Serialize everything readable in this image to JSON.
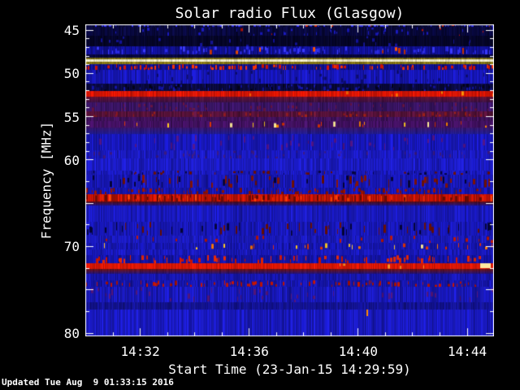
{
  "title": "Solar radio Flux (Glasgow)",
  "x_axis": {
    "label": "Start Time (23-Jan-15 14:29:59)",
    "start_time": "14:29:59",
    "major_ticks": [
      {
        "label": "14:32",
        "t": 2.017
      },
      {
        "label": "14:36",
        "t": 6.017
      },
      {
        "label": "14:40",
        "t": 10.017
      },
      {
        "label": "14:44",
        "t": 14.017
      }
    ],
    "minor_ticks": [
      0.017,
      1.017,
      2.017,
      3.017,
      4.017,
      5.017,
      6.017,
      7.017,
      8.017,
      9.017,
      10.017,
      11.017,
      12.017,
      13.017,
      14.017
    ]
  },
  "y_axis": {
    "label": "Frequency [MHz]",
    "unit": "MHz",
    "labeled_ticks": [
      45,
      50,
      55,
      60,
      70,
      80
    ],
    "major_ticks": [
      45,
      50,
      55,
      60,
      65,
      70,
      75,
      80
    ],
    "minor_ticks": [
      46,
      47,
      48,
      49,
      51,
      52,
      53,
      54,
      56,
      57,
      58,
      59,
      62.5,
      67.5,
      72.5,
      77.5
    ]
  },
  "footer": {
    "updated": "Updated Tue Aug  9 01:33:15 2016"
  },
  "colors": {
    "background": "#000000",
    "text": "#ffffff",
    "frame": "#ffffff",
    "base_blue": "#1a1ac4",
    "strong_red": "#e21500",
    "yellow_line": "#f7f2cf"
  },
  "chart_data": {
    "type": "heatmap",
    "subtype": "radio-spectrogram",
    "station": "Glasgow",
    "time_start": "14:29:59",
    "date": "23-Jan-15",
    "time_span_minutes": 15.0,
    "freq_range": [
      44.34,
      80.37
    ],
    "bands": [
      {
        "name": "top-edge-checker",
        "f0": 44.34,
        "f1": 44.65,
        "style": "noise",
        "color": "#0a0a3a",
        "noise": 0.9,
        "dashes": [
          {
            "colors": [
              "#2a2ae0",
              "#3333ff"
            ],
            "density": 0.55,
            "hFrac": 0.7
          },
          {
            "colors": [
              "#cc2200"
            ],
            "density": 0.1,
            "hFrac": 0.6,
            "rightBias": true
          }
        ]
      },
      {
        "name": "dark-navy-specks",
        "f0": 44.65,
        "f1": 45.7,
        "style": "noise",
        "color": "#08083c",
        "noise": 0.7,
        "dashes": [
          {
            "colors": [
              "#1a1abf"
            ],
            "density": 0.3,
            "hFrac": 0.3
          },
          {
            "colors": [
              "#bb1100"
            ],
            "density": 0.06,
            "hFrac": 0.25
          }
        ]
      },
      {
        "name": "very-dark-band",
        "f0": 45.7,
        "f1": 46.95,
        "style": "noise",
        "color": "#050528",
        "noise": 0.6,
        "dashes": [
          {
            "colors": [
              "#12129a"
            ],
            "density": 0.25,
            "hFrac": 0.3
          }
        ]
      },
      {
        "name": "blue-comb-47MHz",
        "f0": 46.95,
        "f1": 47.9,
        "style": "noise",
        "color": "#101095",
        "noise": 0.6,
        "dashes": [
          {
            "colors": [
              "#3a3aff",
              "#2a2ae8"
            ],
            "density": 0.5,
            "hFrac": 0.5
          },
          {
            "colors": [
              "#cc3300",
              "#ff5500"
            ],
            "density": 0.14,
            "hFrac": 0.55,
            "rightBias": true
          }
        ]
      },
      {
        "name": "dark-gap",
        "f0": 47.9,
        "f1": 48.26,
        "style": "noise",
        "color": "#07073a",
        "noise": 0.5
      },
      {
        "name": "olive-upper",
        "f0": 48.26,
        "f1": 48.46,
        "style": "noise",
        "color": "#7a6f10",
        "noise": 0.35
      },
      {
        "name": "bright-yellow-line-48.6MHz",
        "f0": 48.46,
        "f1": 48.74,
        "style": "noise",
        "color": "#f7f2cf",
        "noise": 0.12
      },
      {
        "name": "olive-lower",
        "f0": 48.74,
        "f1": 48.95,
        "style": "noise",
        "color": "#8a7a12",
        "noise": 0.35
      },
      {
        "name": "rfi-red-dashes-50MHz",
        "f0": 48.95,
        "f1": 49.62,
        "style": "noise",
        "color": "#101090",
        "noise": 0.55,
        "dashes": [
          {
            "colors": [
              "#dd1100",
              "#ff3300"
            ],
            "density": 0.45,
            "hFrac": 0.6
          }
        ]
      },
      {
        "name": "blue-50.5MHz",
        "f0": 49.62,
        "f1": 51.2,
        "style": "noise",
        "color": "#1717bc",
        "noise": 0.5,
        "dashes": [
          {
            "colors": [
              "#0d0d70"
            ],
            "density": 0.25,
            "hFrac": 0.25
          }
        ]
      },
      {
        "name": "dark-checker-51.5MHz",
        "f0": 51.2,
        "f1": 52.05,
        "style": "noise",
        "color": "#09093f",
        "noise": 0.7,
        "dashes": [
          {
            "colors": [
              "#1414a8"
            ],
            "density": 0.35,
            "hFrac": 0.4
          },
          {
            "colors": [
              "#030318"
            ],
            "density": 0.3,
            "hFrac": 0.4
          }
        ]
      },
      {
        "name": "solid-red-52.4MHz",
        "f0": 52.05,
        "f1": 52.7,
        "style": "noise",
        "color": "#e21500",
        "noise": 0.3,
        "dashes": [
          {
            "colors": [
              "#ff6a00",
              "#ff9900"
            ],
            "density": 0.1,
            "hFrac": 0.5,
            "rightBias": true
          }
        ]
      },
      {
        "name": "maroon-fade",
        "f0": 52.7,
        "f1": 53.35,
        "style": "grad",
        "color": "#6b1030",
        "color2": "#38104a",
        "noise": 0.4
      },
      {
        "name": "purple-mottle",
        "f0": 53.35,
        "f1": 54.38,
        "style": "noise",
        "color": "#3c1566",
        "noise": 0.5,
        "dashes": [
          {
            "colors": [
              "#6a1440"
            ],
            "density": 0.3,
            "hFrac": 0.3
          }
        ]
      },
      {
        "name": "maroon-stripe-54.7MHz",
        "f0": 54.38,
        "f1": 55.05,
        "style": "noise",
        "color": "#581238",
        "noise": 0.5,
        "dashes": [
          {
            "colors": [
              "#8c1a20",
              "#a02015"
            ],
            "density": 0.35,
            "hFrac": 0.45
          }
        ]
      },
      {
        "name": "dark-purple",
        "f0": 55.05,
        "f1": 55.58,
        "style": "noise",
        "color": "#42125c",
        "noise": 0.45
      },
      {
        "name": "orange-bursts-55.9MHz",
        "f0": 55.58,
        "f1": 56.28,
        "style": "noise",
        "color": "#451163",
        "noise": 0.45,
        "dashes": [
          {
            "colors": [
              "#ff8800",
              "#ffcc22",
              "#ffee99",
              "#dd3300"
            ],
            "density": 0.32,
            "hFrac": 0.55,
            "rightBias": true
          }
        ]
      },
      {
        "name": "purple-blue-fade",
        "f0": 56.28,
        "f1": 57.1,
        "style": "grad",
        "color": "#3a1670",
        "color2": "#1c1c9e",
        "noise": 0.4
      },
      {
        "name": "blue-58MHz",
        "f0": 57.1,
        "f1": 58.95,
        "style": "noise",
        "color": "#1818c0",
        "noise": 0.45,
        "dashes": [
          {
            "colors": [
              "#55158a"
            ],
            "density": 0.2,
            "hFrac": 0.3
          }
        ]
      },
      {
        "name": "purple-striation-59MHz",
        "f0": 58.95,
        "f1": 59.85,
        "style": "noise",
        "color": "#1b1bc6",
        "noise": 0.4,
        "dashes": [
          {
            "colors": [
              "#3d1a85"
            ],
            "density": 0.3,
            "hFrac": 0.35
          }
        ]
      },
      {
        "name": "blue-60MHz",
        "f0": 59.85,
        "f1": 61.25,
        "style": "noise",
        "color": "#1c1cca",
        "noise": 0.4
      },
      {
        "name": "speckle-61.5MHz",
        "f0": 61.25,
        "f1": 61.75,
        "style": "noise",
        "color": "#1a1ac2",
        "noise": 0.4,
        "dashes": [
          {
            "colors": [
              "#701000",
              "#050540"
            ],
            "density": 0.3,
            "hFrac": 0.5
          }
        ]
      },
      {
        "name": "speckle-rows-62MHz",
        "f0": 61.75,
        "f1": 63.2,
        "style": "noise",
        "color": "#1818bc",
        "noise": 0.45,
        "dashes": [
          {
            "colors": [
              "#6e1000",
              "#040438",
              "#8a1400"
            ],
            "density": 0.45,
            "hFrac": 0.45
          }
        ]
      },
      {
        "name": "speckle-dense-63.5MHz",
        "f0": 63.2,
        "f1": 64.0,
        "style": "noise",
        "color": "#1616b4",
        "noise": 0.45,
        "dashes": [
          {
            "colors": [
              "#8a1000",
              "#a31500"
            ],
            "density": 0.5,
            "hFrac": 0.5
          }
        ]
      },
      {
        "name": "red-band-64.4MHz",
        "f0": 64.0,
        "f1": 64.82,
        "style": "noise",
        "color": "#c51300",
        "noise": 0.55,
        "dashes": [
          {
            "colors": [
              "#e82000",
              "#ff4400"
            ],
            "density": 0.35,
            "hFrac": 0.7
          },
          {
            "colors": [
              "#700a00"
            ],
            "density": 0.3,
            "hFrac": 0.6
          }
        ]
      },
      {
        "name": "red-fade-65MHz",
        "f0": 64.82,
        "f1": 65.3,
        "style": "grad",
        "color": "#5a0c10",
        "color2": "#15159e",
        "noise": 0.4
      },
      {
        "name": "blue-66MHz",
        "f0": 65.3,
        "f1": 67.15,
        "style": "noise",
        "color": "#1a1ac4",
        "noise": 0.4
      },
      {
        "name": "speckle-rows-68MHz",
        "f0": 67.15,
        "f1": 68.75,
        "style": "noise",
        "color": "#1818bc",
        "noise": 0.45,
        "dashes": [
          {
            "colors": [
              "#6e1000",
              "#040438"
            ],
            "density": 0.4,
            "hFrac": 0.45
          }
        ]
      },
      {
        "name": "sparse-red-69MHz",
        "f0": 68.75,
        "f1": 69.65,
        "style": "noise",
        "color": "#1a1ac0",
        "noise": 0.4,
        "dashes": [
          {
            "colors": [
              "#c21600"
            ],
            "density": 0.15,
            "hFrac": 0.5
          }
        ]
      },
      {
        "name": "orange-bursts-70MHz",
        "f0": 69.65,
        "f1": 70.35,
        "style": "noise",
        "color": "#1717b8",
        "noise": 0.45,
        "dashes": [
          {
            "colors": [
              "#ff7700",
              "#ffcc22",
              "#e83300",
              "#ffee99"
            ],
            "density": 0.38,
            "hFrac": 0.6,
            "rightBias": true
          }
        ]
      },
      {
        "name": "blue-70.7MHz",
        "f0": 70.35,
        "f1": 71.05,
        "style": "noise",
        "color": "#1919c0",
        "noise": 0.4
      },
      {
        "name": "red-dashes-71.5MHz",
        "f0": 71.05,
        "f1": 71.95,
        "style": "noise",
        "color": "#1414ac",
        "noise": 0.45,
        "dashes": [
          {
            "colors": [
              "#d81500",
              "#ee2800"
            ],
            "density": 0.55,
            "hFrac": 0.55
          }
        ]
      },
      {
        "name": "solid-red-72.2MHz",
        "f0": 71.95,
        "f1": 72.6,
        "style": "noise",
        "color": "#e61800",
        "noise": 0.25,
        "dashes": [
          {
            "colors": [
              "#ff9922"
            ],
            "density": 0.06,
            "hFrac": 0.5,
            "rightBias": true
          }
        ]
      },
      {
        "name": "red-fade-73MHz",
        "f0": 72.6,
        "f1": 73.15,
        "style": "grad",
        "color": "#79100a",
        "color2": "#131394",
        "noise": 0.4
      },
      {
        "name": "blue-73.5MHz",
        "f0": 73.15,
        "f1": 73.9,
        "style": "noise",
        "color": "#1717b4",
        "noise": 0.4
      },
      {
        "name": "red-dashes-74.2MHz",
        "f0": 73.9,
        "f1": 74.65,
        "style": "noise",
        "color": "#1616b0",
        "noise": 0.45,
        "dashes": [
          {
            "colors": [
              "#cc1500",
              "#aa1200"
            ],
            "density": 0.4,
            "hFrac": 0.5
          }
        ]
      },
      {
        "name": "blue-tinge-75.5MHz",
        "f0": 74.65,
        "f1": 76.45,
        "style": "noise",
        "color": "#1919be",
        "noise": 0.5,
        "dashes": [
          {
            "colors": [
              "#55157a"
            ],
            "density": 0.18,
            "hFrac": 0.3
          }
        ]
      },
      {
        "name": "darker-blue-77MHz",
        "f0": 76.45,
        "f1": 77.3,
        "style": "noise",
        "color": "#131396",
        "noise": 0.45
      },
      {
        "name": "blue-bottom",
        "f0": 77.3,
        "f1": 80.37,
        "style": "noise",
        "color": "#1a1ac6",
        "noise": 0.45
      }
    ],
    "features": [
      {
        "name": "point-burst",
        "t": 10.32,
        "f0": 77.3,
        "f1": 78.1,
        "color": "#ff8800",
        "width": 2
      },
      {
        "name": "bright-tip-72MHz-right",
        "t": 14.52,
        "f0": 71.98,
        "f1": 72.55,
        "color": "#ffe9a0",
        "width": 13
      }
    ]
  }
}
